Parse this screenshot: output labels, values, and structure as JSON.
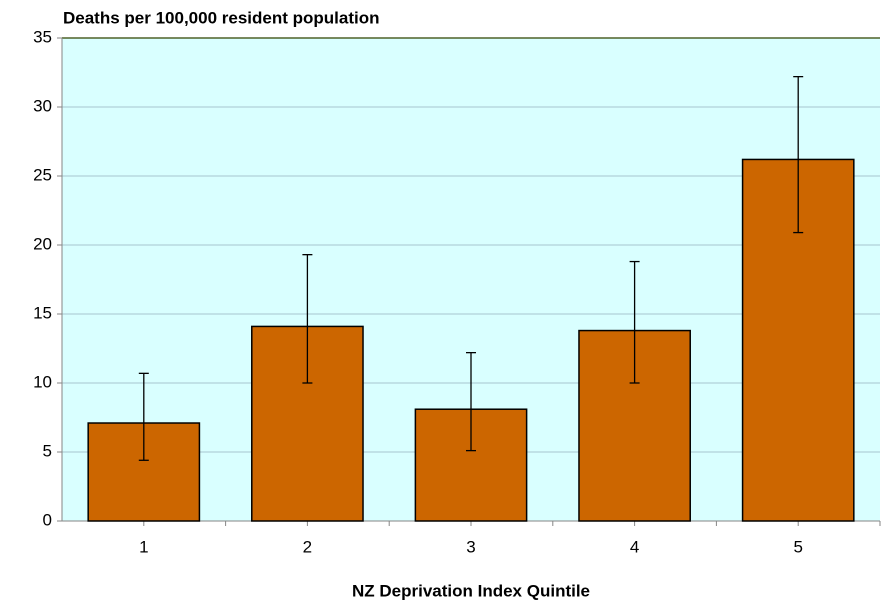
{
  "chart_data": {
    "type": "bar",
    "title": "Deaths per  100,000 resident population",
    "x_label": "NZ Deprivation Index Quintile",
    "categories": [
      "1",
      "2",
      "3",
      "4",
      "5"
    ],
    "values": [
      7.1,
      14.1,
      8.1,
      13.8,
      26.2
    ],
    "lower": [
      4.4,
      10.0,
      5.1,
      10.0,
      20.9
    ],
    "upper": [
      10.7,
      19.3,
      12.2,
      18.8,
      32.2
    ],
    "color": "#cc6600",
    "ylim": [
      0,
      35
    ],
    "yticks": [
      0,
      5,
      10,
      15,
      20,
      25,
      30,
      35
    ],
    "grid": true
  }
}
